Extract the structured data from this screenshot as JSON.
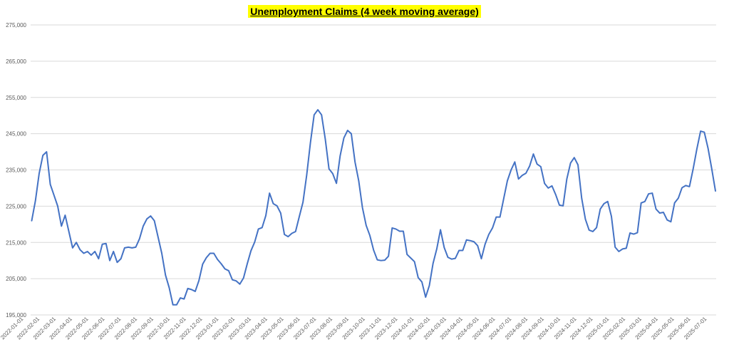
{
  "chart_data": {
    "type": "line",
    "title": "Unemployment Claims (4 week moving average)",
    "xlabel": "",
    "ylabel": "",
    "ylim": [
      195000,
      275000
    ],
    "yticks": [
      "195,000",
      "205,000",
      "215,000",
      "225,000",
      "235,000",
      "245,000",
      "255,000",
      "265,000",
      "275,000"
    ],
    "ytick_values": [
      195000,
      205000,
      215000,
      225000,
      235000,
      245000,
      255000,
      265000,
      275000
    ],
    "grid": true,
    "colors": {
      "series": "#4472c4",
      "grid": "#d9d9d9",
      "title_highlight": "#ffff00"
    },
    "x_ticks": [
      "2022-01-01",
      "2022-02-01",
      "2022-03-01",
      "2022-04-01",
      "2022-05-01",
      "2022-06-01",
      "2022-07-01",
      "2022-08-01",
      "2022-09-01",
      "2022-10-01",
      "2022-11-01",
      "2022-12-01",
      "2023-01-01",
      "2023-02-01",
      "2023-03-01",
      "2023-04-01",
      "2023-05-01",
      "2023-06-01",
      "2023-07-01",
      "2023-08-01",
      "2023-09-01",
      "2023-10-01",
      "2023-11-01",
      "2023-12-01",
      "2024-01-01",
      "2024-02-01",
      "2024-03-01",
      "2024-04-01",
      "2024-05-01",
      "2024-06-01",
      "2024-07-01",
      "2024-08-01",
      "2024-09-01",
      "2024-10-01",
      "2024-11-01",
      "2024-12-01",
      "2025-01-01",
      "2025-02-01",
      "2025-03-01",
      "2025-04-01",
      "2025-05-01",
      "2025-06-01",
      "2025-07-01"
    ],
    "values": [
      221000,
      226500,
      234000,
      239000,
      240000,
      231000,
      228000,
      225000,
      219500,
      222500,
      218000,
      213500,
      215000,
      213000,
      212000,
      212500,
      211500,
      212500,
      210500,
      214500,
      214700,
      210000,
      212500,
      209500,
      210500,
      213500,
      213700,
      213500,
      213700,
      216000,
      219500,
      221500,
      222300,
      221000,
      216500,
      212000,
      206000,
      202500,
      197800,
      197800,
      199700,
      199400,
      202300,
      202000,
      201500,
      204500,
      209000,
      210800,
      212000,
      212000,
      210300,
      209100,
      207700,
      207200,
      204700,
      204400,
      203500,
      205200,
      209100,
      212700,
      215100,
      218700,
      219100,
      222400,
      228600,
      225700,
      225100,
      223100,
      217200,
      216600,
      217500,
      218000,
      222100,
      226100,
      233600,
      242500,
      250200,
      251600,
      250200,
      243500,
      235300,
      234000,
      231300,
      238900,
      243800,
      245900,
      245000,
      237200,
      232000,
      224600,
      219700,
      216900,
      212900,
      210200,
      210000,
      210100,
      211200,
      219000,
      218700,
      218100,
      218100,
      211700,
      210700,
      209700,
      205300,
      204100,
      199900,
      203100,
      209200,
      213200,
      218500,
      213600,
      210900,
      210400,
      210600,
      212800,
      212800,
      215700,
      215500,
      215200,
      214100,
      210500,
      214500,
      217200,
      219000,
      222000,
      222000,
      227000,
      232000,
      235000,
      237200,
      232500,
      233500,
      234100,
      236100,
      239400,
      236600,
      235900,
      231300,
      230000,
      230600,
      228200,
      225300,
      225100,
      232500,
      236900,
      238400,
      236400,
      227200,
      221400,
      218400,
      218000,
      219100,
      224200,
      225700,
      226300,
      222200,
      213700,
      212500,
      213200,
      213400,
      217600,
      217300,
      217700,
      225900,
      226300,
      228400,
      228600,
      224200,
      223100,
      223300,
      221200,
      220700,
      225900,
      227200,
      230100,
      230700,
      230400,
      235300,
      240800,
      245700,
      245400,
      241000,
      235300,
      229200
    ]
  }
}
